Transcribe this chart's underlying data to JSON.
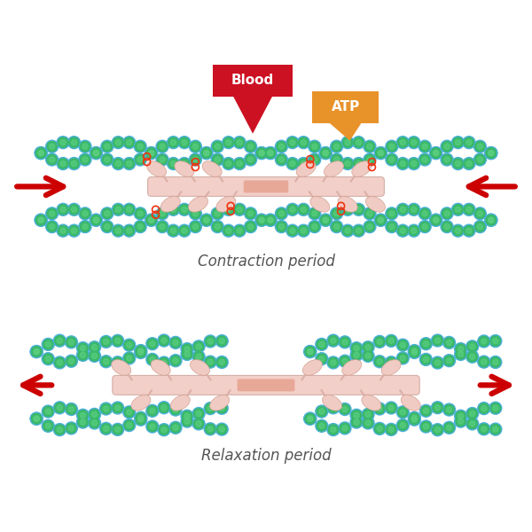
{
  "title_top": "Contraction period",
  "title_bottom": "Relaxation period",
  "title_color": "#555555",
  "title_fontsize": 12,
  "bg_color": "#ffffff",
  "blood_label": "Blood",
  "atp_label": "ATP",
  "blood_bg": "#cc1122",
  "atp_bg": "#e8922a",
  "label_text_color": "#ffffff",
  "arrow_color": "#cc0000",
  "myosin_body_color": "#f2cfc8",
  "myosin_head_color": "#f0cbc4",
  "myosin_center_color": "#e8a898",
  "actin_blue": "#4ab0d8",
  "actin_green_outer": "#3ab86a",
  "actin_green_inner": "#5dd080",
  "small_red_color": "#ee3311",
  "small_red_ring": "#ee3311"
}
